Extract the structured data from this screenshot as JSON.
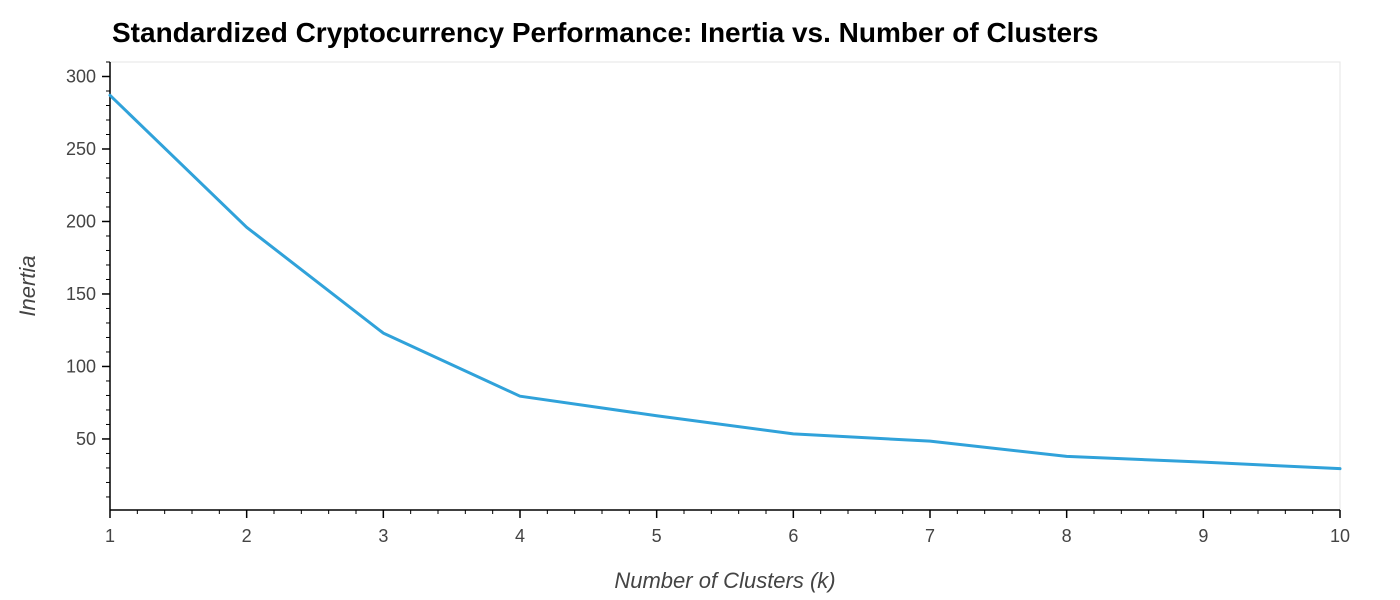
{
  "chart_data": {
    "type": "line",
    "title": "Standardized Cryptocurrency Performance: Inertia vs. Number of Clusters",
    "xlabel": "Number of Clusters (k)",
    "ylabel": "Inertia",
    "x": [
      1,
      2,
      3,
      4,
      5,
      6,
      7,
      8,
      9,
      10
    ],
    "series": [
      {
        "values": [
          287,
          196,
          123,
          79.5,
          66,
          53.5,
          48.5,
          38,
          34,
          29.5
        ],
        "color": "#30a2da"
      }
    ],
    "xlim": [
      1,
      10
    ],
    "ylim": [
      1,
      310
    ],
    "x_ticks": [
      "1",
      "2",
      "3",
      "4",
      "5",
      "6",
      "7",
      "8",
      "9",
      "10"
    ],
    "y_ticks": [
      "50",
      "100",
      "150",
      "200",
      "250",
      "300"
    ],
    "grid": false,
    "legend": "none"
  }
}
